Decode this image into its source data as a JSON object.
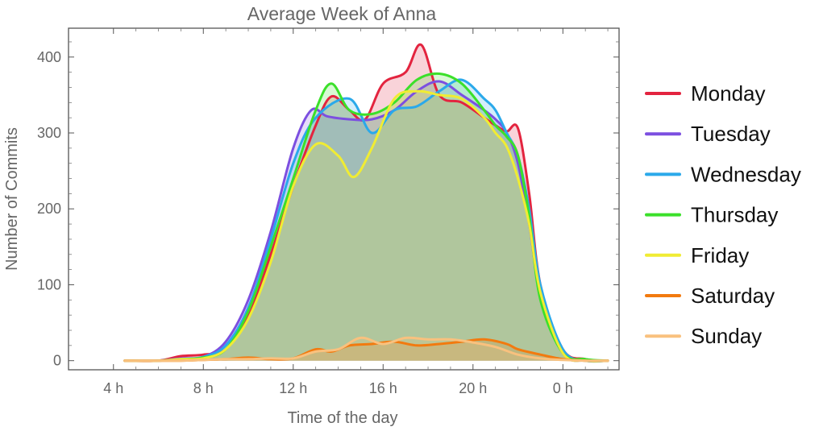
{
  "chart_data": {
    "type": "area",
    "title": "Average Week of Anna",
    "xlabel": "Time of the day",
    "ylabel": "Number of Commits",
    "xlim": [
      2,
      26.5
    ],
    "ylim": [
      -12,
      438
    ],
    "x_ticks": [
      {
        "value": 4,
        "label": "4 h"
      },
      {
        "value": 8,
        "label": "8 h"
      },
      {
        "value": 12,
        "label": "12 h"
      },
      {
        "value": 16,
        "label": "16 h"
      },
      {
        "value": 20,
        "label": "20 h"
      },
      {
        "value": 24,
        "label": "0 h"
      }
    ],
    "y_ticks": [
      {
        "value": 0,
        "label": "0"
      },
      {
        "value": 100,
        "label": "100"
      },
      {
        "value": 200,
        "label": "200"
      },
      {
        "value": 300,
        "label": "300"
      },
      {
        "value": 400,
        "label": "400"
      }
    ],
    "legend_position": "right",
    "grid": false,
    "series": [
      {
        "name": "Monday",
        "color": "#e3243f",
        "x": [
          4.5,
          6,
          7,
          8,
          9,
          10,
          11,
          12,
          13,
          13.7,
          14.5,
          15.2,
          16,
          17,
          17.7,
          18.5,
          19.5,
          20.5,
          21,
          21.5,
          22,
          22.5,
          23,
          24,
          25,
          26
        ],
        "y": [
          0,
          0,
          6,
          8,
          15,
          60,
          140,
          230,
          310,
          348,
          330,
          318,
          365,
          380,
          416,
          350,
          340,
          320,
          310,
          302,
          306,
          220,
          100,
          15,
          2,
          0
        ]
      },
      {
        "name": "Tuesday",
        "color": "#7c4fe0",
        "x": [
          4.5,
          6,
          7,
          8,
          9,
          10,
          11,
          12,
          12.8,
          13.5,
          14.5,
          15.5,
          16.5,
          17.5,
          18.5,
          19.5,
          20.5,
          21,
          21.5,
          22,
          22.5,
          23,
          24,
          25,
          26
        ],
        "y": [
          0,
          0,
          3,
          5,
          25,
          80,
          170,
          280,
          330,
          322,
          318,
          318,
          330,
          355,
          368,
          350,
          330,
          318,
          300,
          260,
          180,
          90,
          10,
          0,
          0
        ]
      },
      {
        "name": "Wednesday",
        "color": "#2aa9ea",
        "x": [
          4.5,
          6,
          7,
          8,
          9,
          10,
          11,
          12,
          13,
          14.5,
          15.5,
          16.5,
          17.5,
          18.5,
          19.5,
          20.5,
          21,
          21.5,
          22,
          22.5,
          23,
          24,
          25,
          26
        ],
        "y": [
          0,
          0,
          2,
          5,
          20,
          70,
          160,
          260,
          320,
          345,
          300,
          330,
          335,
          355,
          370,
          345,
          330,
          300,
          270,
          200,
          100,
          15,
          0,
          0
        ]
      },
      {
        "name": "Thursday",
        "color": "#3be02a",
        "x": [
          4.5,
          6,
          7,
          8,
          9,
          10,
          11,
          12,
          13,
          13.7,
          14.5,
          15.5,
          16.5,
          17.5,
          18.5,
          19.5,
          20.5,
          21,
          21.5,
          22,
          22.5,
          23,
          24,
          25,
          26
        ],
        "y": [
          0,
          0,
          2,
          4,
          15,
          65,
          150,
          240,
          330,
          365,
          330,
          325,
          340,
          370,
          378,
          365,
          330,
          310,
          295,
          270,
          190,
          80,
          10,
          2,
          0
        ]
      },
      {
        "name": "Friday",
        "color": "#f0ec33",
        "x": [
          4.5,
          6,
          7,
          8,
          9,
          10,
          11,
          12,
          13,
          14,
          14.7,
          15.5,
          16.5,
          17.5,
          18.5,
          19.5,
          20.5,
          21,
          21.5,
          22,
          22.5,
          23,
          24,
          25,
          26
        ],
        "y": [
          0,
          0,
          2,
          3,
          15,
          55,
          130,
          230,
          285,
          270,
          242,
          280,
          345,
          355,
          350,
          345,
          320,
          300,
          282,
          240,
          180,
          90,
          10,
          0,
          0
        ]
      },
      {
        "name": "Saturday",
        "color": "#f27a0f",
        "x": [
          4.5,
          6,
          7,
          8,
          9,
          10,
          11,
          12,
          13,
          13.7,
          14.5,
          15.5,
          16.5,
          17.5,
          18.5,
          19.5,
          20.5,
          21.5,
          22,
          23,
          24,
          25,
          26
        ],
        "y": [
          0,
          0,
          0,
          1,
          2,
          4,
          2,
          3,
          15,
          12,
          20,
          22,
          25,
          20,
          22,
          25,
          28,
          22,
          15,
          8,
          2,
          0,
          0
        ]
      },
      {
        "name": "Sunday",
        "color": "#f9c17e",
        "x": [
          4.5,
          6,
          7,
          8,
          9,
          10,
          11,
          12,
          13,
          14,
          15,
          16,
          17,
          18,
          19,
          20,
          21,
          22,
          23,
          24,
          25,
          26
        ],
        "y": [
          0,
          0,
          0,
          1,
          2,
          2,
          3,
          3,
          12,
          15,
          30,
          22,
          30,
          28,
          28,
          24,
          18,
          8,
          3,
          1,
          0,
          0
        ]
      }
    ]
  }
}
